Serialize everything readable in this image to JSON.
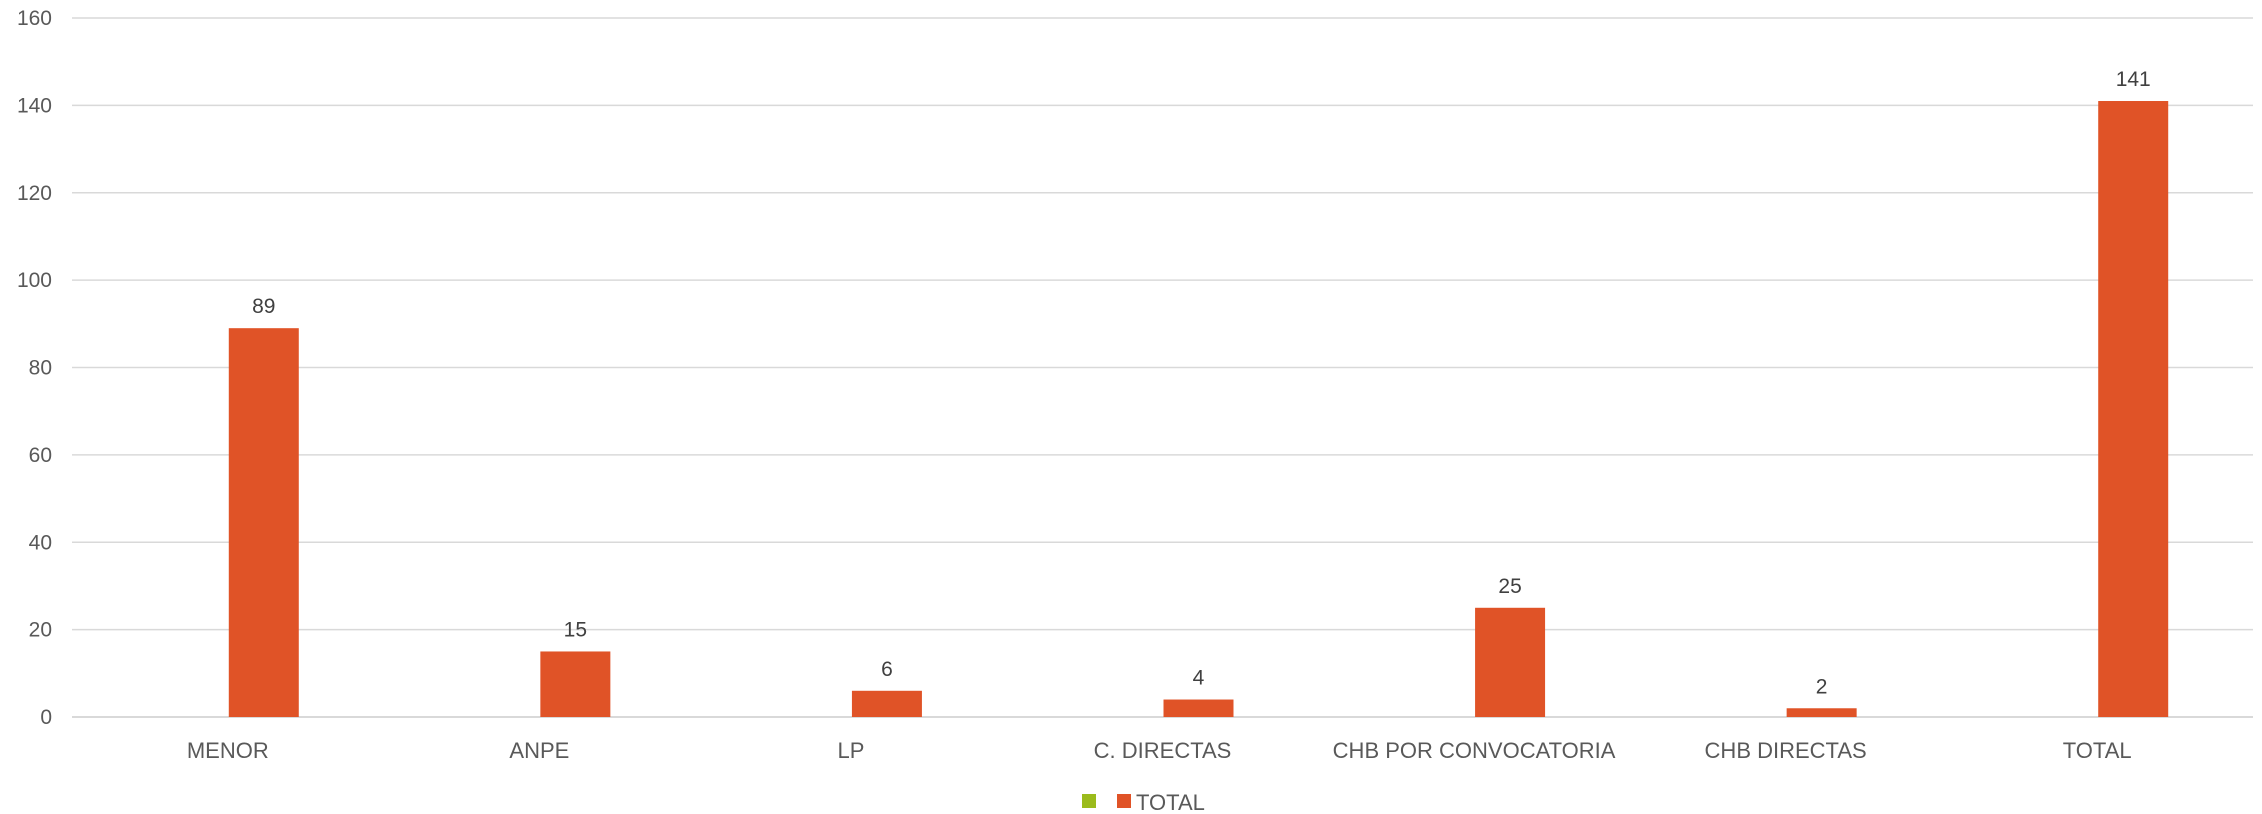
{
  "chart_data": {
    "type": "bar",
    "categories": [
      "MENOR",
      "ANPE",
      "LP",
      "C. DIRECTAS",
      "CHB POR CONVOCATORIA",
      "CHB DIRECTAS",
      "TOTAL"
    ],
    "series": [
      {
        "name": "",
        "color": "#9bbb1c",
        "values": [
          0,
          0,
          0,
          0,
          0,
          0,
          0
        ]
      },
      {
        "name": "TOTAL",
        "color": "#e05327",
        "values": [
          89,
          15,
          6,
          4,
          25,
          2,
          141
        ]
      }
    ],
    "ylim": [
      0,
      160
    ],
    "yticks": [
      0,
      20,
      40,
      60,
      80,
      100,
      120,
      140,
      160
    ],
    "grid": true,
    "legend": "bottom-center",
    "data_labels": true
  }
}
